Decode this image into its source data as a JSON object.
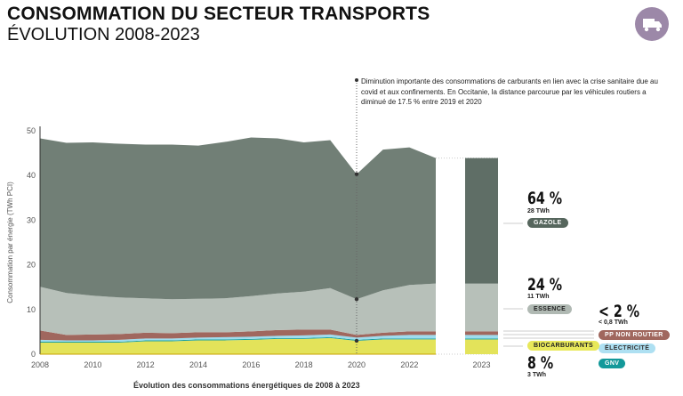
{
  "header": {
    "title": "CONSOMMATION DU SECTEUR TRANSPORTS",
    "subtitle": "ÉVOLUTION 2008-2023",
    "icon": "truck-icon"
  },
  "chart_data": {
    "type": "area",
    "stacked": true,
    "xlabel": "Évolution des consommations énergétiques de 2008 à 2023",
    "ylabel": "Consommation par énergie (TWh PCI)",
    "ylim": [
      0,
      50
    ],
    "yticks": [
      "0",
      "10",
      "20",
      "30",
      "40",
      "50"
    ],
    "xticks": [
      "2008",
      "2010",
      "2012",
      "2014",
      "2016",
      "2018",
      "2020",
      "2022"
    ],
    "x": [
      2008,
      2009,
      2010,
      2011,
      2012,
      2013,
      2014,
      2015,
      2016,
      2017,
      2018,
      2019,
      2020,
      2021,
      2022,
      2023
    ],
    "series": [
      {
        "name": "BIOCARBURANTS",
        "color": "#e3e35a",
        "values": [
          2.6,
          2.6,
          2.6,
          2.6,
          2.9,
          2.9,
          3.1,
          3.1,
          3.2,
          3.4,
          3.4,
          3.6,
          3.0,
          3.3,
          3.3,
          3.3
        ]
      },
      {
        "name": "GNV",
        "color": "#1aa0a0",
        "values": [
          0.2,
          0.2,
          0.2,
          0.2,
          0.2,
          0.2,
          0.2,
          0.2,
          0.2,
          0.2,
          0.2,
          0.2,
          0.2,
          0.2,
          0.2,
          0.2
        ]
      },
      {
        "name": "ÉLECTRICITÉ",
        "color": "#9edcee",
        "values": [
          0.4,
          0.3,
          0.3,
          0.4,
          0.4,
          0.4,
          0.4,
          0.5,
          0.5,
          0.5,
          0.6,
          0.6,
          0.5,
          0.6,
          0.8,
          0.8
        ]
      },
      {
        "name": "PP NON ROUTIER",
        "color": "#a0675e",
        "values": [
          2.1,
          1.2,
          1.3,
          1.3,
          1.3,
          1.2,
          1.2,
          1.1,
          1.2,
          1.3,
          1.3,
          1.1,
          0.6,
          0.7,
          0.8,
          0.8
        ]
      },
      {
        "name": "ESSENCE",
        "color": "#b7c0b9",
        "values": [
          9.8,
          9.4,
          8.7,
          8.2,
          7.7,
          7.6,
          7.5,
          7.6,
          7.9,
          8.2,
          8.5,
          9.3,
          8.0,
          9.5,
          10.4,
          10.7
        ]
      },
      {
        "name": "GAZOLE",
        "color": "#717f76",
        "values": [
          33.2,
          33.6,
          34.3,
          34.4,
          34.4,
          34.6,
          34.3,
          35.0,
          35.5,
          34.7,
          33.4,
          33.1,
          28.0,
          31.5,
          30.8,
          28.1
        ]
      }
    ],
    "bar_2023": {
      "label": "2023",
      "gazole_color": "#5f6e66"
    },
    "annotation": {
      "year": 2020,
      "text": "Diminution importante des consommations de carburants en lien avec la crise sanitaire due au covid et aux confinements. En Occitanie, la distance parcourue par les véhicules routiers a diminué de 17.5 % entre 2019 et 2020"
    },
    "shares": {
      "gazole": {
        "pct": "64 %",
        "twh": "28 TWh",
        "label": "GAZOLE"
      },
      "essence": {
        "pct": "24 %",
        "twh": "11 TWh",
        "label": "ESSENCE"
      },
      "minor": {
        "pct": "< 2 %",
        "twh": "< 0,8 TWh",
        "labels": [
          "PP NON ROUTIER",
          "ÉLECTRICITÉ",
          "GNV"
        ]
      },
      "bio": {
        "pct": "8 %",
        "twh": "3 TWh",
        "label": "BIOCARBURANTS"
      }
    }
  }
}
